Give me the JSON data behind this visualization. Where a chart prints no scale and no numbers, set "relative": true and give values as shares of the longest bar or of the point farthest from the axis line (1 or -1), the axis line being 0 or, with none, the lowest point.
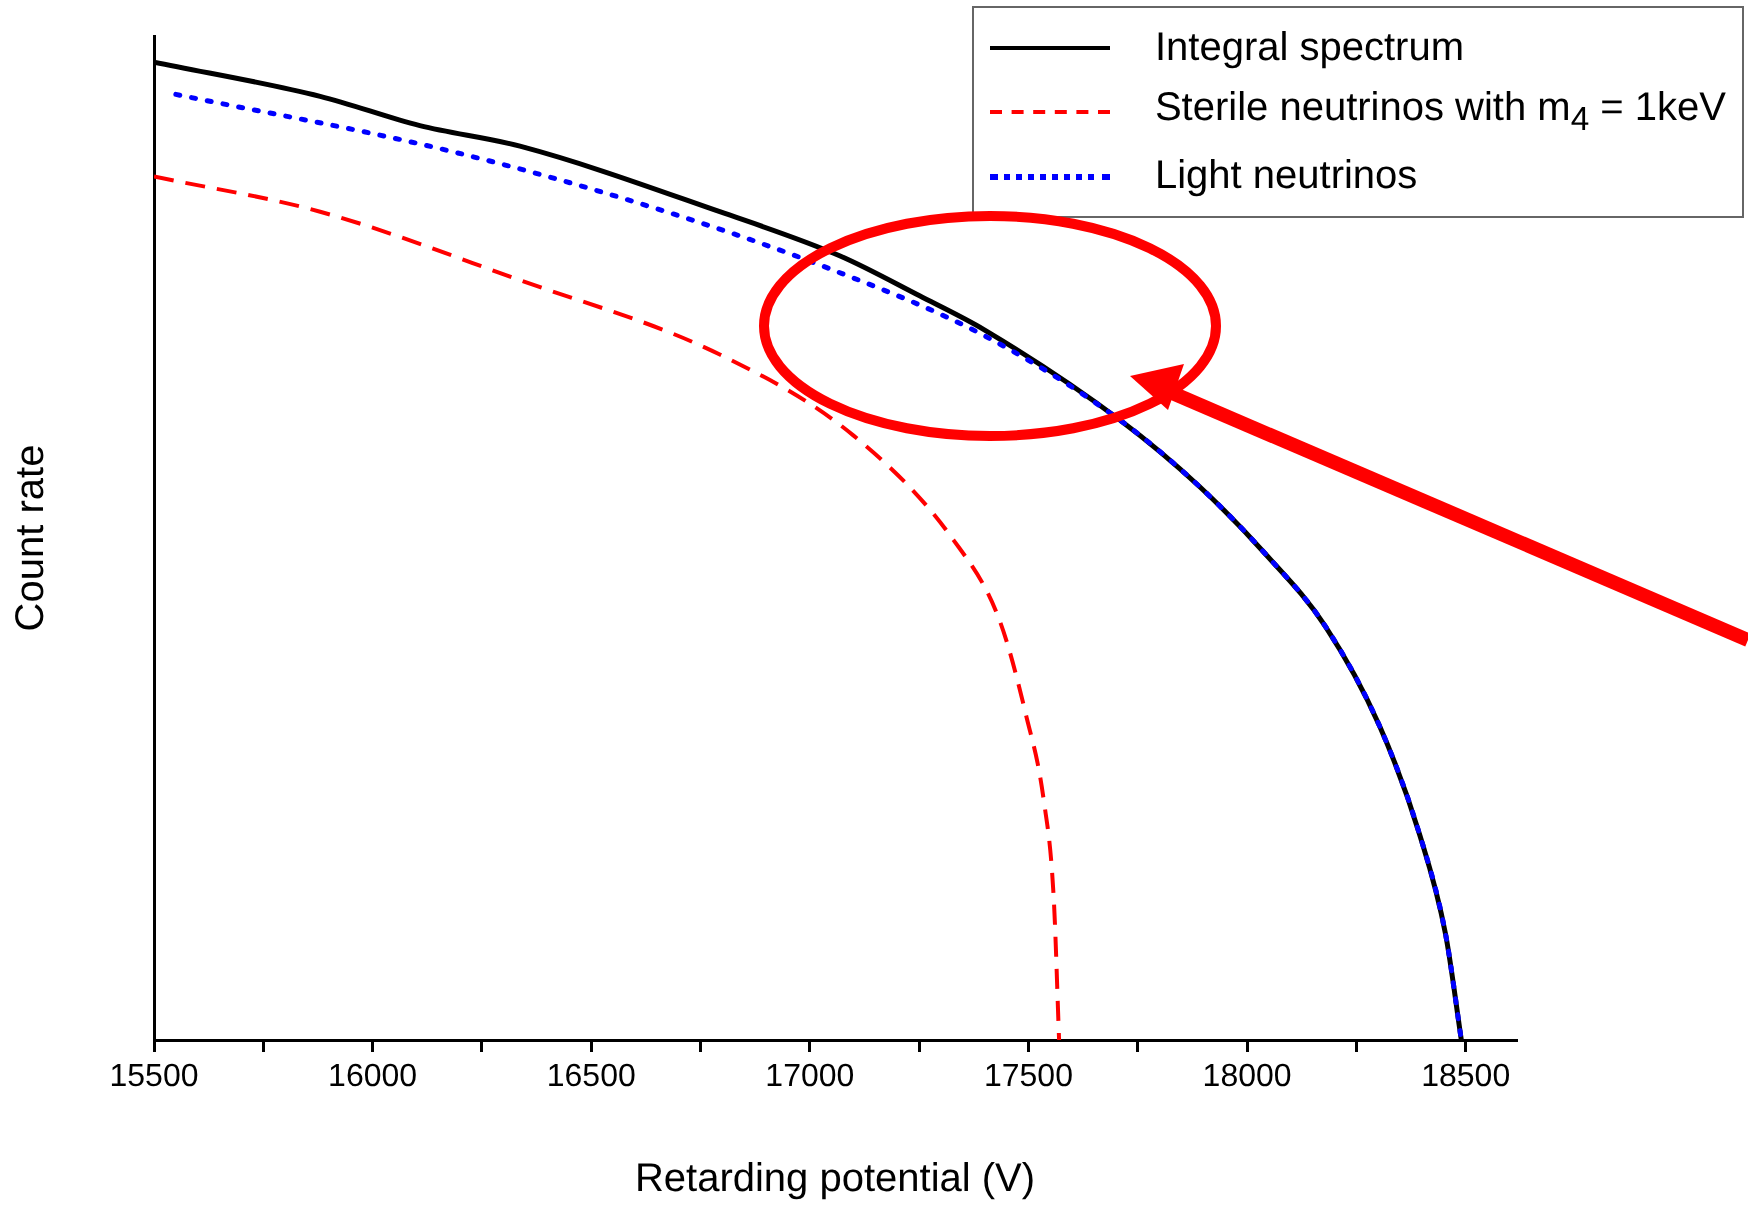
{
  "chart_data": {
    "type": "line",
    "xlabel": "Retarding potential (V)",
    "ylabel": "Count rate",
    "relative": true,
    "legend": "top right",
    "grid": false,
    "marker": "none",
    "tick_labels": "x",
    "xlim": [
      15500,
      18615
    ],
    "xticks": [
      15500,
      {
        "value": 15750,
        "label": null
      },
      16000,
      {
        "value": 16250,
        "label": null
      },
      16500,
      {
        "value": 16750,
        "label": null
      },
      17000,
      {
        "value": 17250,
        "label": null
      },
      17500,
      {
        "value": 17750,
        "label": null
      },
      18000,
      {
        "value": 18250,
        "label": null
      },
      18500
    ],
    "series": [
      {
        "name": "Integral spectrum",
        "color": "#000000",
        "line_style": "solid",
        "x": [
          15500,
          15880,
          16108,
          16337,
          16794,
          17068,
          17251,
          17400,
          17709,
          17891,
          18042,
          18179,
          18303,
          18394,
          18454,
          18490
        ],
        "values": [
          1,
          0.965,
          0.935,
          0.914,
          0.847,
          0.802,
          0.761,
          0.726,
          0.634,
          0.566,
          0.497,
          0.423,
          0.321,
          0.211,
          0.108,
          0
        ]
      },
      {
        "name": "Sterile neutrinos with m$_{4}$ = 1keV",
        "color": "#ff0000",
        "line_style": "dashed",
        "x": [
          15500,
          15880,
          16337,
          16794,
          17100,
          17329,
          17434,
          17494,
          17535,
          17558,
          17570
        ],
        "values": [
          0.883,
          0.847,
          0.777,
          0.701,
          0.618,
          0.511,
          0.429,
          0.333,
          0.245,
          0.143,
          0
        ]
      },
      {
        "name": "Light neutrinos",
        "color": "#0000ff",
        "line_style": "dotted",
        "x": [
          15550,
          16168,
          16643,
          17055,
          17400,
          17709,
          17891,
          18042,
          18179,
          18303,
          18394,
          18454,
          18490
        ],
        "values": [
          0.967,
          0.91,
          0.851,
          0.787,
          0.72,
          0.634,
          0.566,
          0.497,
          0.423,
          0.321,
          0.211,
          0.108,
          0
        ]
      }
    ]
  }
}
